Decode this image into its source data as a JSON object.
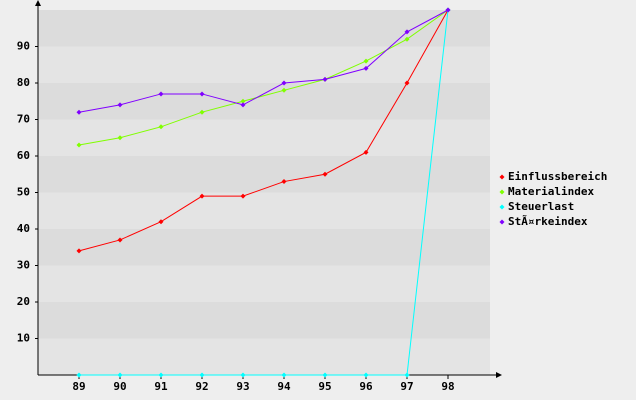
{
  "chart_data": {
    "type": "line",
    "categories": [
      "89",
      "90",
      "91",
      "92",
      "93",
      "94",
      "95",
      "96",
      "97",
      "98"
    ],
    "series": [
      {
        "name": "Einflussbereich",
        "color": "#ff0000",
        "values": [
          34,
          37,
          42,
          49,
          49,
          53,
          55,
          61,
          80,
          100
        ]
      },
      {
        "name": "Materialindex",
        "color": "#80ff00",
        "values": [
          63,
          65,
          68,
          72,
          75,
          78,
          81,
          86,
          92,
          100
        ]
      },
      {
        "name": "Steuerlast",
        "color": "#00ffff",
        "values": [
          0,
          0,
          0,
          0,
          0,
          0,
          0,
          0,
          0,
          100
        ]
      },
      {
        "name": "StÃ¤rkeindex",
        "color": "#8000ff",
        "values": [
          72,
          74,
          77,
          77,
          74,
          80,
          81,
          84,
          94,
          100
        ]
      }
    ],
    "ylim": [
      0,
      100
    ],
    "yticks": [
      10,
      20,
      30,
      40,
      50,
      60,
      70,
      80,
      90
    ],
    "grid": true,
    "legend": "right"
  }
}
